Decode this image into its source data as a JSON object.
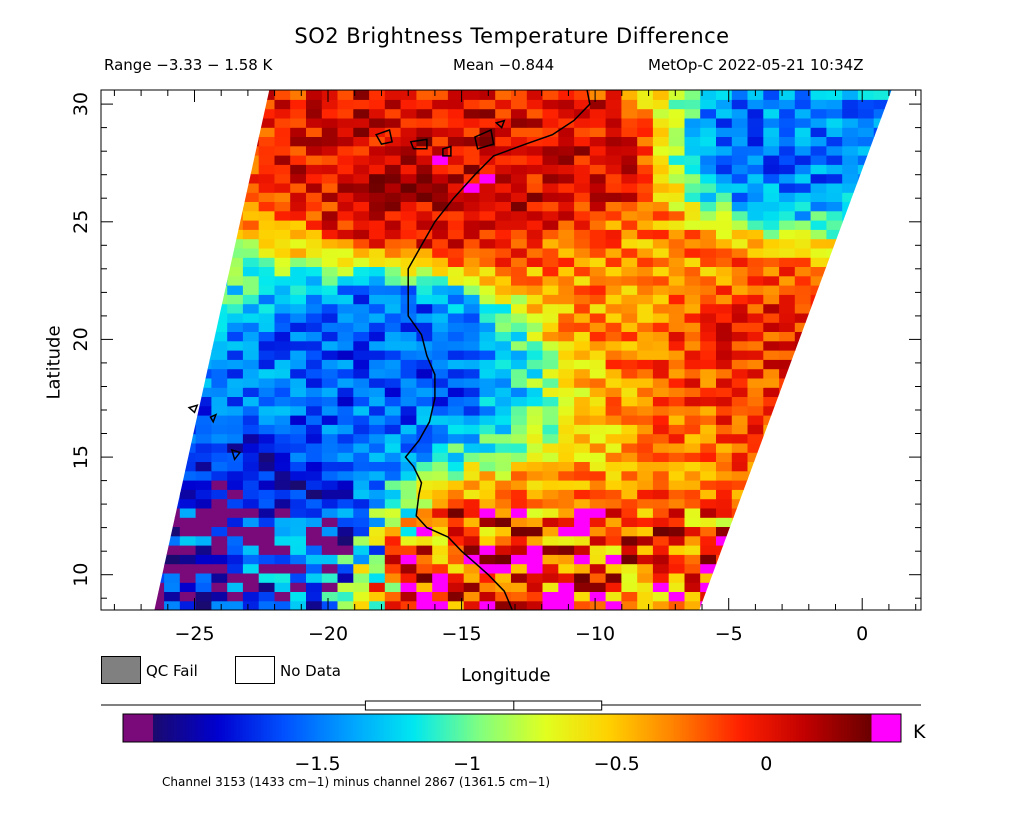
{
  "title": "SO2 Brightness Temperature Difference",
  "subtitle_range": "Range −3.33 − 1.58 K",
  "subtitle_mean": "Mean −0.844",
  "subtitle_platform": "MetOp-C 2022-05-21 10:34Z",
  "legend": {
    "qc_fail_label": "QC Fail",
    "no_data_label": "No Data",
    "qc_fail_color": "#808080",
    "no_data_color": "#ffffff"
  },
  "colorbar": {
    "unit": "K",
    "ticks": [
      -1.5,
      -1,
      -0.5,
      0
    ],
    "tick_labels": [
      "−1.5",
      "−1",
      "−0.5",
      "0"
    ],
    "range": [
      -2.05,
      0.35
    ],
    "under_color": "#7a0a7a",
    "over_color": "#ff00ff",
    "colors": [
      "#1a0a6e",
      "#0000d0",
      "#0050ff",
      "#00a0ff",
      "#00e8f0",
      "#80ff80",
      "#e0ff20",
      "#ffd000",
      "#ff8000",
      "#ff2000",
      "#c00000",
      "#6a0000"
    ],
    "boxplot": {
      "min": -1.34,
      "mean": -0.844,
      "max": -0.55
    }
  },
  "footnote": "Channel 3153 (1433 cm−1) minus channel 2867 (1361.5 cm−1)",
  "chart_data": {
    "type": "heatmap",
    "title": "SO2 Brightness Temperature Difference",
    "xlabel": "Longitude",
    "ylabel": "Latitude",
    "xlim": [
      -28.5,
      2.2
    ],
    "ylim": [
      8.5,
      30.6
    ],
    "xticks": [
      -25,
      -20,
      -15,
      -10,
      -5,
      0
    ],
    "yticks": [
      10,
      15,
      20,
      25,
      30
    ],
    "xtick_labels": [
      "−25",
      "−20",
      "−15",
      "−10",
      "−5",
      "0"
    ],
    "ytick_labels": [
      "10",
      "15",
      "20",
      "25",
      "30"
    ],
    "value_range": [
      -3.33,
      1.58
    ],
    "mean": -0.844,
    "unit": "K",
    "swath_corners": [
      [
        -26.5,
        8.5
      ],
      [
        -6.1,
        8.5
      ],
      [
        1.1,
        30.6
      ],
      [
        -22.2,
        30.6
      ]
    ],
    "grid_lon_steps": 52,
    "grid_lat_steps": 56,
    "features": [
      {
        "lon": -16.0,
        "lat": 26.5,
        "value": 0.1
      },
      {
        "lon": -11.0,
        "lat": 27.5,
        "value": 0.05
      },
      {
        "lon": -8.0,
        "lat": 22.5,
        "value": -0.35
      },
      {
        "lon": -4.0,
        "lat": 20.5,
        "value": -0.1
      },
      {
        "lon": -17.5,
        "lat": 19.5,
        "value": -1.6
      },
      {
        "lon": -3.5,
        "lat": 28.0,
        "value": -1.5
      },
      {
        "lon": -22.5,
        "lat": 11.5,
        "value": -1.85
      },
      {
        "lon": -14.0,
        "lat": 9.5,
        "value": 0.0
      }
    ],
    "coastline": [
      [
        -10.3,
        30.6
      ],
      [
        -10.2,
        30.0
      ],
      [
        -10.8,
        29.3
      ],
      [
        -11.6,
        28.7
      ],
      [
        -12.6,
        28.3
      ],
      [
        -13.8,
        27.8
      ],
      [
        -14.5,
        27.0
      ],
      [
        -15.3,
        26.0
      ],
      [
        -16.0,
        25.0
      ],
      [
        -16.5,
        24.0
      ],
      [
        -17.0,
        23.0
      ],
      [
        -17.0,
        22.2
      ],
      [
        -17.0,
        21.0
      ],
      [
        -16.5,
        20.2
      ],
      [
        -16.3,
        19.3
      ],
      [
        -16.0,
        18.5
      ],
      [
        -16.0,
        17.5
      ],
      [
        -16.2,
        16.5
      ],
      [
        -16.6,
        15.7
      ],
      [
        -17.1,
        15.0
      ],
      [
        -16.8,
        14.6
      ],
      [
        -16.5,
        13.9
      ],
      [
        -16.6,
        13.4
      ],
      [
        -16.7,
        12.5
      ],
      [
        -16.3,
        12.0
      ],
      [
        -15.5,
        11.6
      ],
      [
        -15.0,
        11.0
      ],
      [
        -14.6,
        10.6
      ],
      [
        -14.0,
        10.0
      ],
      [
        -13.4,
        9.3
      ],
      [
        -13.1,
        8.5
      ]
    ],
    "islands": [
      [
        [
          -18.2,
          28.7
        ],
        [
          -17.7,
          28.9
        ],
        [
          -17.6,
          28.4
        ],
        [
          -18.0,
          28.3
        ]
      ],
      [
        [
          -16.9,
          28.4
        ],
        [
          -16.3,
          28.5
        ],
        [
          -16.3,
          28.1
        ],
        [
          -16.8,
          28.1
        ]
      ],
      [
        [
          -15.7,
          28.1
        ],
        [
          -15.4,
          28.2
        ],
        [
          -15.4,
          27.8
        ],
        [
          -15.7,
          27.8
        ]
      ],
      [
        [
          -14.5,
          28.6
        ],
        [
          -13.9,
          28.9
        ],
        [
          -13.8,
          28.3
        ],
        [
          -14.4,
          28.1
        ]
      ],
      [
        [
          -13.7,
          29.2
        ],
        [
          -13.4,
          29.3
        ],
        [
          -13.5,
          29.0
        ]
      ],
      [
        [
          -25.2,
          17.1
        ],
        [
          -24.9,
          17.2
        ],
        [
          -25.0,
          16.9
        ]
      ],
      [
        [
          -24.4,
          16.7
        ],
        [
          -24.2,
          16.8
        ],
        [
          -24.3,
          16.5
        ]
      ],
      [
        [
          -23.6,
          15.3
        ],
        [
          -23.3,
          15.2
        ],
        [
          -23.5,
          14.9
        ]
      ]
    ]
  }
}
